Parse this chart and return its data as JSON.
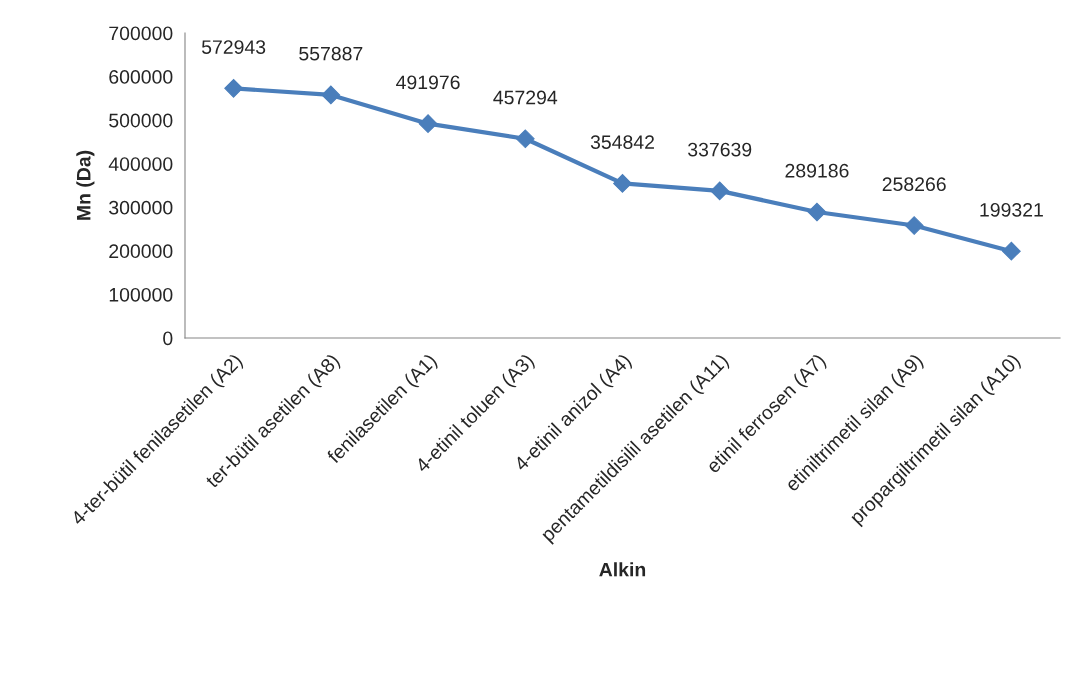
{
  "chart_data": {
    "type": "line",
    "xlabel": "Alkin",
    "ylabel": "Mn (Da)",
    "categories": [
      "4-ter-bütil fenilasetilen (A2)",
      "ter-bütil asetilen (A8)",
      "fenilasetilen (A1)",
      "4-etinil toluen (A3)",
      "4-etinil anizol (A4)",
      "pentametildisilil asetilen (A11)",
      "etinil ferrosen (A7)",
      "etiniltrimetil silan (A9)",
      "propargiltrimetil silan (A10)"
    ],
    "series": [
      {
        "color": "#4a7ebb",
        "values": [
          572943,
          557887,
          491976,
          457294,
          354842,
          337639,
          289186,
          258266,
          199321
        ]
      }
    ],
    "ylim": [
      0,
      700000
    ],
    "yticks": [
      0,
      100000,
      200000,
      300000,
      400000,
      500000,
      600000,
      700000
    ],
    "grid": false,
    "legend": false,
    "marker": "diamond",
    "line_style": "solid",
    "data_labels": true
  }
}
